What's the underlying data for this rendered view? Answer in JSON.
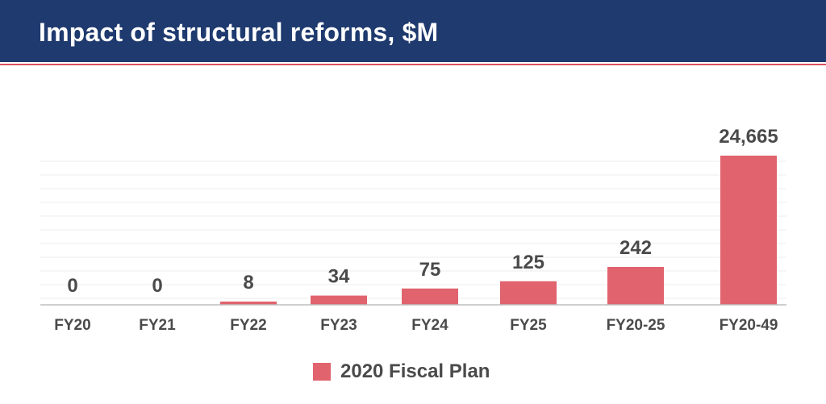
{
  "header": {
    "title": "Impact of structural reforms, $M"
  },
  "colors": {
    "header_bg": "#1e3a6e",
    "accent": "#d9525f",
    "bar": "#e0636d"
  },
  "chart_data": {
    "type": "bar",
    "title": "Impact of structural reforms, $M",
    "xlabel": "",
    "ylabel": "",
    "categories": [
      "FY20",
      "FY21",
      "FY22",
      "FY23",
      "FY24",
      "FY25",
      "FY20-25",
      "FY20-49"
    ],
    "series": [
      {
        "name": "2020 Fiscal Plan",
        "values": [
          0,
          0,
          8,
          34,
          75,
          125,
          242,
          24665
        ],
        "labels": [
          "0",
          "0",
          "8",
          "34",
          "75",
          "125",
          "242",
          "24,665"
        ]
      }
    ],
    "grid": true,
    "legend": "bottom-center",
    "note": "bars are not drawn to a common linear scale"
  }
}
